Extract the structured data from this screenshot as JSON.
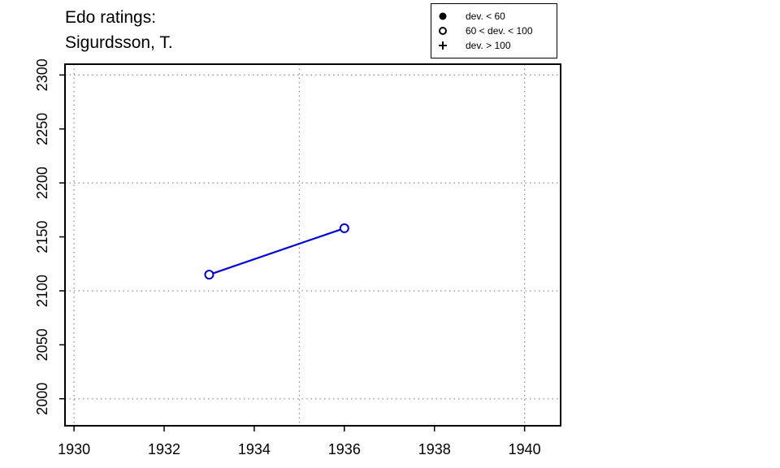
{
  "title": [
    "Edo ratings:",
    "Sigurdsson, T."
  ],
  "legend": {
    "placement": "top-right",
    "items": [
      {
        "symbol": "filled-circle",
        "label": "dev. < 60"
      },
      {
        "symbol": "open-circle",
        "label": "60 < dev. < 100"
      },
      {
        "symbol": "plus",
        "label": "dev. > 100"
      }
    ]
  },
  "chart_data": {
    "type": "line",
    "xlim": [
      1929.8,
      1940.8
    ],
    "ylim": [
      1975,
      2310
    ],
    "x_ticks": [
      1930,
      1932,
      1934,
      1936,
      1938,
      1940
    ],
    "y_ticks": [
      2000,
      2050,
      2100,
      2150,
      2200,
      2250,
      2300
    ],
    "grid": true,
    "grid_x": [
      1930,
      1935,
      1940
    ],
    "grid_y": [
      2000,
      2100,
      2200,
      2300
    ],
    "series": [
      {
        "color": "#0000dd",
        "marker": "open-circle",
        "points": [
          {
            "x": 1933,
            "y": 2115
          },
          {
            "x": 1936,
            "y": 2158
          }
        ]
      }
    ]
  }
}
